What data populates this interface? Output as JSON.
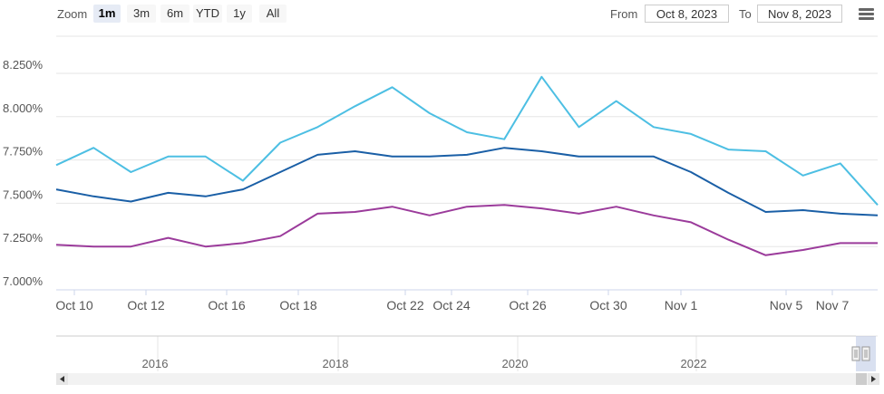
{
  "toolbar": {
    "zoom_label": "Zoom",
    "zoom_buttons": [
      "1m",
      "3m",
      "6m",
      "YTD",
      "1y",
      "All"
    ],
    "active_zoom": "1m",
    "from_label": "From",
    "from_value": "Oct 8, 2023",
    "to_label": "To",
    "to_value": "Nov 8, 2023",
    "menu_icon": "hamburger-menu-icon"
  },
  "chart_data": {
    "type": "line",
    "title": "",
    "xlabel": "",
    "ylabel": "",
    "ylim": [
      7.0,
      8.25
    ],
    "y_ticks": [
      "7.000%",
      "7.250%",
      "7.500%",
      "7.750%",
      "8.000%",
      "8.250%"
    ],
    "x_ticks": [
      "Oct 10",
      "Oct 12",
      "Oct 16",
      "Oct 18",
      "Oct 22",
      "Oct 24",
      "Oct 26",
      "Oct 30",
      "Nov 1",
      "Nov 5",
      "Nov 7"
    ],
    "grid": true,
    "legend": "none",
    "colors": [
      "#4dbfe3",
      "#1a5fa6",
      "#9b3b9b"
    ],
    "series": [
      {
        "values": [
          7.72,
          7.82,
          7.68,
          7.77,
          7.77,
          7.63,
          7.85,
          7.94,
          8.06,
          8.17,
          8.02,
          7.91,
          7.87,
          8.23,
          7.94,
          8.09,
          7.94,
          7.9,
          7.81,
          7.8,
          7.66,
          7.73,
          7.49
        ]
      },
      {
        "values": [
          7.58,
          7.54,
          7.51,
          7.56,
          7.54,
          7.58,
          7.68,
          7.78,
          7.8,
          7.77,
          7.77,
          7.78,
          7.82,
          7.8,
          7.77,
          7.77,
          7.77,
          7.68,
          7.56,
          7.45,
          7.46,
          7.44,
          7.43
        ]
      },
      {
        "values": [
          7.26,
          7.25,
          7.25,
          7.3,
          7.25,
          7.27,
          7.31,
          7.44,
          7.45,
          7.48,
          7.43,
          7.48,
          7.49,
          7.47,
          7.44,
          7.48,
          7.43,
          7.39,
          7.29,
          7.2,
          7.23,
          7.27,
          7.27
        ]
      }
    ],
    "navigator": {
      "year_labels": [
        "2016",
        "2018",
        "2020",
        "2022"
      ]
    }
  }
}
